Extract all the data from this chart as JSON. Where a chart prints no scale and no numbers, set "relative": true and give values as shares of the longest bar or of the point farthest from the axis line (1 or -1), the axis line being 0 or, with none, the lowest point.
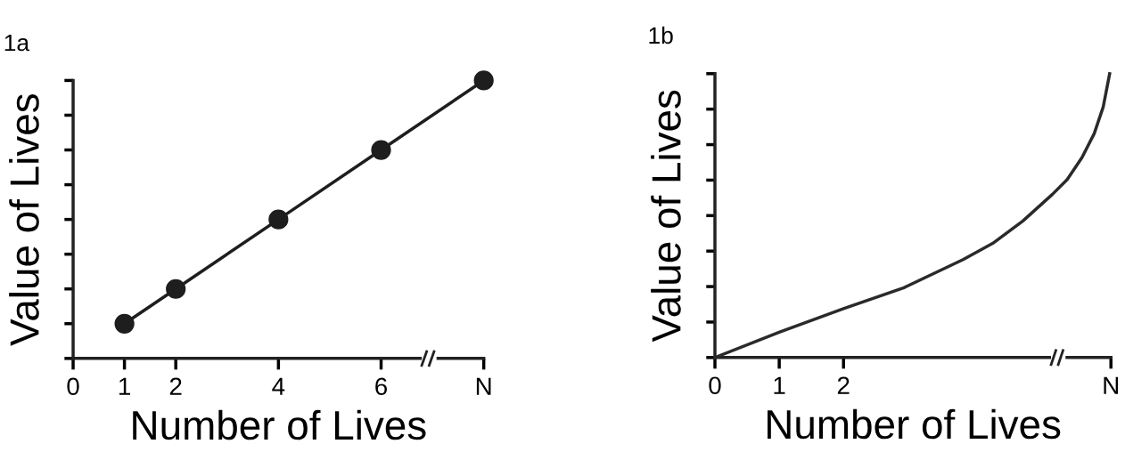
{
  "chart_data": [
    {
      "type": "line",
      "title": "1a",
      "xlabel": "Number of Lives",
      "ylabel": "Value of Lives",
      "relative": true,
      "marker": "circle",
      "line_style": "solid",
      "grid": false,
      "legend": false,
      "tick_labels": "x",
      "xlim": [
        0,
        8
      ],
      "xticks": [
        0,
        1,
        2,
        4,
        6,
        {
          "value": 8,
          "label": "N"
        }
      ],
      "series": [
        {
          "color": "#1e1e1e",
          "x": [
            1,
            2,
            4,
            6,
            8
          ],
          "values": [
            0.125,
            0.25,
            0.5,
            0.75,
            1
          ]
        }
      ]
    },
    {
      "type": "line",
      "title": "1b",
      "xlabel": "Number of Lives",
      "ylabel": "Value of Lives",
      "relative": true,
      "marker": "none",
      "line_style": "solid",
      "grid": false,
      "legend": false,
      "tick_labels": "x",
      "xlim": [
        0,
        6.16
      ],
      "xticks": [
        0,
        1,
        2,
        {
          "value": 6.16,
          "label": "N"
        }
      ],
      "series": [
        {
          "color": "#2a2a2a",
          "x": [
            0,
            1.0,
            2.0,
            2.94,
            3.86,
            4.32,
            4.79,
            5.25,
            5.48,
            5.71,
            5.9,
            6.04,
            6.14
          ],
          "values": [
            0,
            0.089,
            0.172,
            0.246,
            0.345,
            0.402,
            0.481,
            0.575,
            0.627,
            0.705,
            0.789,
            0.883,
            1
          ]
        }
      ]
    }
  ]
}
